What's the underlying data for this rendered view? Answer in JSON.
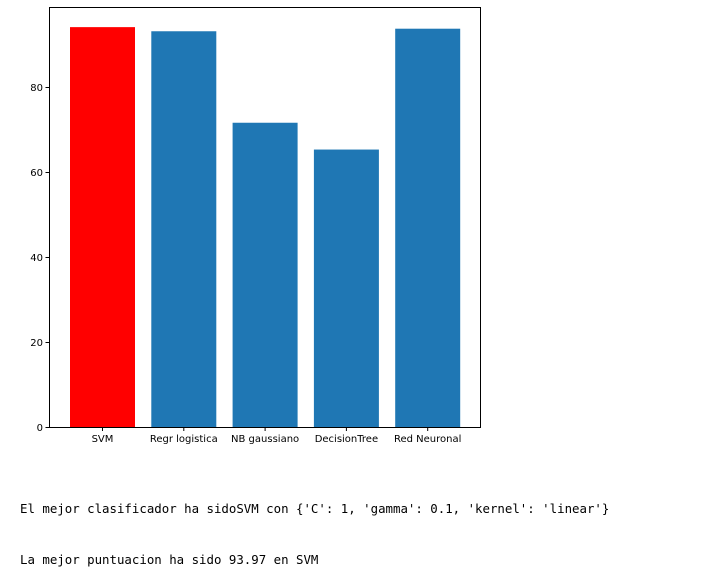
{
  "chart_data": {
    "type": "bar",
    "categories": [
      "SVM",
      "Regr logistica",
      "NB gaussiano",
      "DecisionTree",
      "Red Neuronal"
    ],
    "values": [
      93.97,
      93.0,
      71.5,
      65.2,
      93.6
    ],
    "colors": [
      "#ff0000",
      "#1f77b4",
      "#1f77b4",
      "#1f77b4",
      "#1f77b4"
    ],
    "ylim": [
      0,
      98.7
    ],
    "yticks": [
      0,
      20,
      40,
      60,
      80
    ],
    "grid": false
  },
  "output": {
    "line1": "El mejor clasificador ha sidoSVM con {'C': 1, 'gamma': 0.1, 'kernel': 'linear'}",
    "line2": "La mejor puntuacion ha sido 93.97 en SVM"
  }
}
